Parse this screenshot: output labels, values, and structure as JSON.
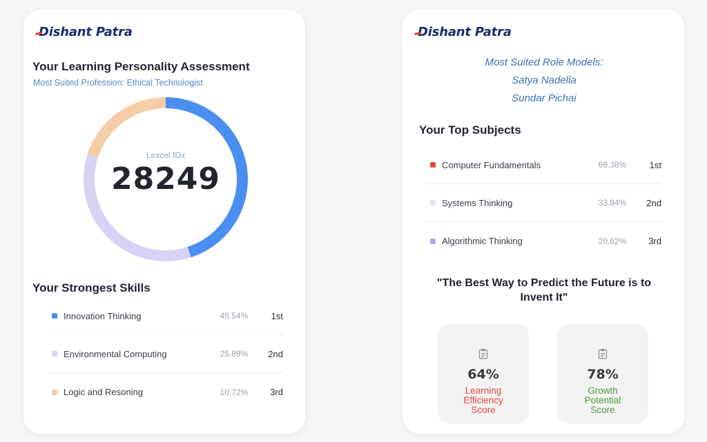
{
  "brand": {
    "name": "Dishant Patra"
  },
  "left": {
    "title": "Your Learning Personality Assessment",
    "profession": "Most Suited Profession: Ethical Technologist",
    "index": {
      "label": "Lexcel IDx",
      "value": "28249",
      "segments": [
        {
          "name": "blue",
          "fraction": 0.45,
          "color": "#4a8ef0"
        },
        {
          "name": "lavender",
          "fraction": 0.35,
          "color": "#d6d3f5"
        },
        {
          "name": "peach",
          "fraction": 0.2,
          "color": "#f6cda9"
        }
      ]
    },
    "skills_title": "Your Strongest Skills",
    "skills": [
      {
        "name": "Innovation Thinking",
        "percent": "45.54%",
        "rank": "1st",
        "color": "#4a8ef0"
      },
      {
        "name": "Environmental Computing",
        "percent": "25.89%",
        "rank": "2nd",
        "color": "#d6d3f5"
      },
      {
        "name": "Logic and Resoning",
        "percent": "10.72%",
        "rank": "3rd",
        "color": "#f6cda9"
      }
    ]
  },
  "right": {
    "role_models_title": "Most Suited Role Models:",
    "role_models": [
      "Satya Nadella",
      "Sundar Pichai"
    ],
    "subjects_title": "Your Top Subjects",
    "subjects": [
      {
        "name": "Computer Fundamentals",
        "percent": "66.38%",
        "rank": "1st",
        "color": "#e34a45"
      },
      {
        "name": "Systems Thinking",
        "percent": "33.84%",
        "rank": "2nd",
        "color": "#ece0f6"
      },
      {
        "name": "Algorithmic Thinking",
        "percent": "20.62%",
        "rank": "3rd",
        "color": "#b4a8ec"
      }
    ],
    "quote": "\"The Best Way to Predict the Future is to Invent It\"",
    "scores": [
      {
        "percent": "64%",
        "label_lines": [
          "Learning",
          "Efficiency",
          "Score"
        ],
        "color": "#e2453c",
        "icon": "clipboard-icon"
      },
      {
        "percent": "78%",
        "label_lines": [
          "Growth",
          "Potential",
          "Score"
        ],
        "color": "#4d9a36",
        "icon": "clipboard-icon"
      }
    ]
  }
}
